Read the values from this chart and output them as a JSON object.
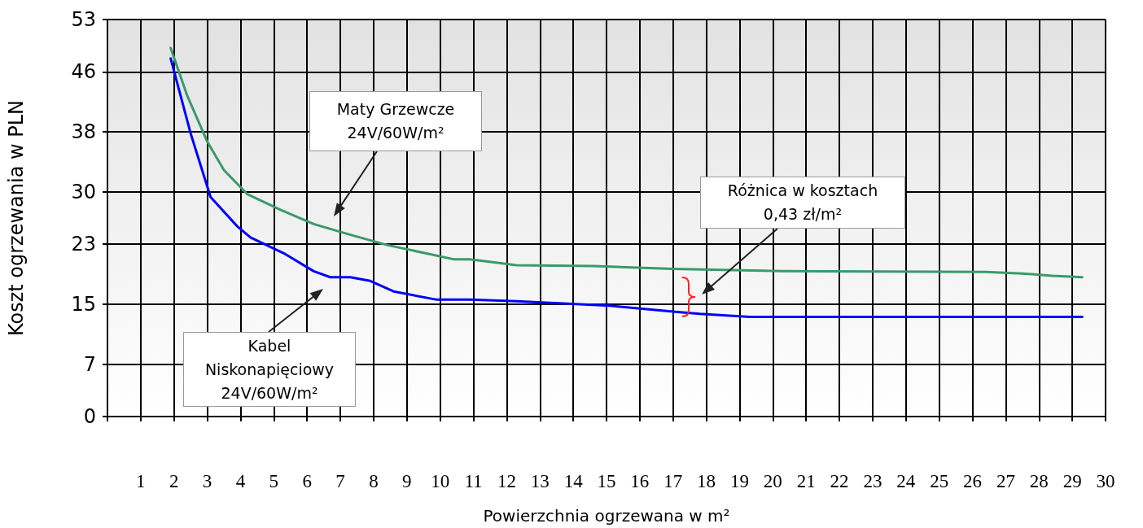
{
  "chart_data": {
    "type": "line",
    "xlabel": "Powierzchnia ogrzewana w m²",
    "ylabel": "Koszt ogrzewania w PLN",
    "xlim": [
      0,
      30
    ],
    "xticks": [
      {
        "value": 0,
        "label": null
      },
      1,
      2,
      3,
      4,
      5,
      6,
      7,
      8,
      9,
      10,
      11,
      12,
      13,
      14,
      15,
      16,
      17,
      18,
      19,
      20,
      21,
      22,
      23,
      24,
      25,
      26,
      27,
      28,
      29,
      30
    ],
    "ylim": [
      0,
      53
    ],
    "yticks": [
      0,
      7,
      15,
      23,
      30,
      38,
      46,
      53
    ],
    "grid": true,
    "marker": "none",
    "line_style": "solid",
    "series": [
      {
        "color": "#3a9a6a",
        "x": [
          1.9,
          2.4,
          3.0,
          3.5,
          4.2,
          5.2,
          6.2,
          7.2,
          8.4,
          10.4,
          10.9,
          12.3,
          14.6,
          17.0,
          20.3,
          26.4,
          27.5,
          28.4,
          29.3
        ],
        "values": [
          49.2,
          42.8,
          36.7,
          32.9,
          29.7,
          27.6,
          25.7,
          24.4,
          22.9,
          21.0,
          21.0,
          20.2,
          20.1,
          19.7,
          19.4,
          19.3,
          19.1,
          18.8,
          18.6
        ]
      },
      {
        "color": "#0000ff",
        "x": [
          1.9,
          2.5,
          3.1,
          3.9,
          4.3,
          5.3,
          6.2,
          6.7,
          7.3,
          7.9,
          8.6,
          9.9,
          10.9,
          12.3,
          15.1,
          17.0,
          17.8,
          19.3,
          29.3
        ],
        "values": [
          47.8,
          37.8,
          29.3,
          25.4,
          23.9,
          21.8,
          19.4,
          18.6,
          18.6,
          18.1,
          16.7,
          15.6,
          15.6,
          15.4,
          14.8,
          14.0,
          13.7,
          13.3,
          13.3
        ]
      }
    ],
    "annotations": [
      "Maty Grzewcze\n24V/60W/m²",
      "Kabel\nNiskonapięciowy\n24V/60W/m²",
      "Różnica w kosztach\n0,43 zł/m²"
    ]
  }
}
